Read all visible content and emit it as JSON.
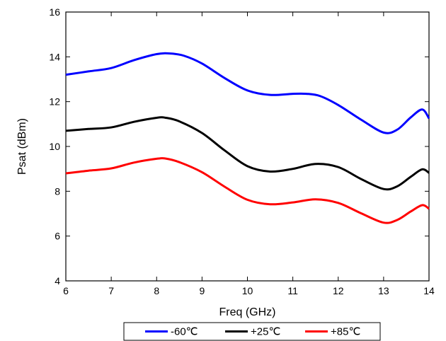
{
  "chart_data": {
    "type": "line",
    "title": "",
    "xlabel": "Freq (GHz)",
    "ylabel": "Psat (dBm)",
    "xlim": [
      6,
      14
    ],
    "ylim": [
      4,
      16
    ],
    "xticks": [
      6,
      7,
      8,
      9,
      10,
      11,
      12,
      13,
      14
    ],
    "yticks": [
      4,
      6,
      8,
      10,
      12,
      14,
      16
    ],
    "grid": false,
    "legend_position": "bottom",
    "series": [
      {
        "name": "-60℃",
        "color": "#0000ff",
        "x": [
          6.0,
          6.5,
          7.0,
          7.5,
          8.0,
          8.3,
          8.6,
          9.0,
          9.5,
          10.0,
          10.5,
          11.0,
          11.3,
          11.6,
          12.0,
          12.5,
          13.0,
          13.3,
          13.6,
          13.85,
          14.0
        ],
        "y": [
          13.2,
          13.35,
          13.5,
          13.85,
          14.12,
          14.15,
          14.05,
          13.7,
          13.05,
          12.5,
          12.3,
          12.35,
          12.35,
          12.25,
          11.85,
          11.2,
          10.62,
          10.75,
          11.3,
          11.65,
          11.25
        ]
      },
      {
        "name": "+25℃",
        "color": "#000000",
        "x": [
          6.0,
          6.5,
          7.0,
          7.5,
          8.0,
          8.2,
          8.5,
          9.0,
          9.5,
          10.0,
          10.5,
          11.0,
          11.5,
          12.0,
          12.5,
          13.0,
          13.3,
          13.6,
          13.85,
          14.0
        ],
        "y": [
          10.7,
          10.78,
          10.85,
          11.1,
          11.28,
          11.28,
          11.12,
          10.6,
          9.82,
          9.12,
          8.88,
          9.0,
          9.22,
          9.08,
          8.55,
          8.1,
          8.22,
          8.65,
          8.98,
          8.82
        ]
      },
      {
        "name": "+85℃",
        "color": "#ff0000",
        "x": [
          6.0,
          6.5,
          7.0,
          7.5,
          8.0,
          8.2,
          8.5,
          9.0,
          9.5,
          10.0,
          10.5,
          11.0,
          11.5,
          12.0,
          12.5,
          13.0,
          13.3,
          13.6,
          13.85,
          14.0
        ],
        "y": [
          8.8,
          8.92,
          9.02,
          9.28,
          9.45,
          9.46,
          9.3,
          8.85,
          8.2,
          7.62,
          7.42,
          7.5,
          7.64,
          7.48,
          7.02,
          6.6,
          6.72,
          7.1,
          7.38,
          7.22
        ]
      }
    ]
  }
}
